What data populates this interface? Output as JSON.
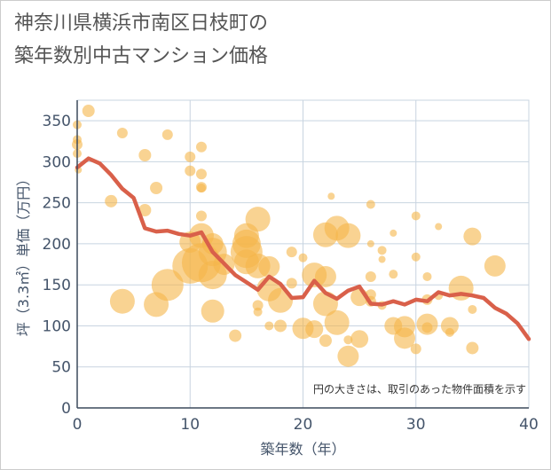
{
  "title": "神奈川県横浜市南区日枝町の\n築年数別中古マンション価格",
  "chart_data": {
    "type": "scatter",
    "xlabel": "築年数（年）",
    "ylabel": "坪（3.3㎡）単価（万円）",
    "xlim": [
      0,
      40
    ],
    "ylim": [
      0,
      375
    ],
    "xticks": [
      0,
      10,
      20,
      30,
      40
    ],
    "yticks": [
      0,
      50,
      100,
      150,
      200,
      250,
      300,
      350
    ],
    "grid": true,
    "annotation": "円の大きさは、取引のあった物件面積を示す",
    "colors": {
      "bubble": "#f5b54a",
      "line": "#d9604a",
      "grid": "#c8d4e0",
      "text": "#44546a"
    },
    "bubbles": [
      {
        "x": 0,
        "y": 345,
        "r": 5
      },
      {
        "x": 0,
        "y": 327,
        "r": 5
      },
      {
        "x": 0,
        "y": 321,
        "r": 6
      },
      {
        "x": 0,
        "y": 310,
        "r": 5
      },
      {
        "x": 0.1,
        "y": 290,
        "r": 4
      },
      {
        "x": 1,
        "y": 362,
        "r": 7
      },
      {
        "x": 3,
        "y": 252,
        "r": 7
      },
      {
        "x": 4,
        "y": 335,
        "r": 6
      },
      {
        "x": 4,
        "y": 130,
        "r": 14
      },
      {
        "x": 6,
        "y": 308,
        "r": 7
      },
      {
        "x": 6,
        "y": 241,
        "r": 7
      },
      {
        "x": 7,
        "y": 268,
        "r": 7
      },
      {
        "x": 7,
        "y": 126,
        "r": 14
      },
      {
        "x": 8,
        "y": 333,
        "r": 6
      },
      {
        "x": 8,
        "y": 150,
        "r": 18
      },
      {
        "x": 10,
        "y": 306,
        "r": 6
      },
      {
        "x": 10,
        "y": 289,
        "r": 6
      },
      {
        "x": 10,
        "y": 202,
        "r": 12
      },
      {
        "x": 10,
        "y": 173,
        "r": 20
      },
      {
        "x": 11,
        "y": 318,
        "r": 6
      },
      {
        "x": 11,
        "y": 285,
        "r": 6
      },
      {
        "x": 11,
        "y": 269,
        "r": 6
      },
      {
        "x": 11,
        "y": 268,
        "r": 5
      },
      {
        "x": 11,
        "y": 234,
        "r": 6
      },
      {
        "x": 11,
        "y": 210,
        "r": 14
      },
      {
        "x": 11,
        "y": 177,
        "r": 22
      },
      {
        "x": 12,
        "y": 200,
        "r": 12
      },
      {
        "x": 12,
        "y": 190,
        "r": 16
      },
      {
        "x": 12,
        "y": 162,
        "r": 16
      },
      {
        "x": 12,
        "y": 118,
        "r": 13
      },
      {
        "x": 13,
        "y": 175,
        "r": 12
      },
      {
        "x": 14,
        "y": 88,
        "r": 7
      },
      {
        "x": 15,
        "y": 210,
        "r": 14
      },
      {
        "x": 15,
        "y": 200,
        "r": 16
      },
      {
        "x": 15,
        "y": 190,
        "r": 18
      },
      {
        "x": 15,
        "y": 178,
        "r": 14
      },
      {
        "x": 16,
        "y": 230,
        "r": 14
      },
      {
        "x": 16,
        "y": 173,
        "r": 14
      },
      {
        "x": 16,
        "y": 125,
        "r": 6
      },
      {
        "x": 16,
        "y": 117,
        "r": 5
      },
      {
        "x": 17,
        "y": 172,
        "r": 12
      },
      {
        "x": 17,
        "y": 145,
        "r": 14
      },
      {
        "x": 17,
        "y": 100,
        "r": 5
      },
      {
        "x": 18,
        "y": 131,
        "r": 14
      },
      {
        "x": 18,
        "y": 100,
        "r": 7
      },
      {
        "x": 19,
        "y": 190,
        "r": 6
      },
      {
        "x": 19,
        "y": 152,
        "r": 6
      },
      {
        "x": 20,
        "y": 183,
        "r": 5
      },
      {
        "x": 20,
        "y": 97,
        "r": 12
      },
      {
        "x": 21,
        "y": 162,
        "r": 14
      },
      {
        "x": 21,
        "y": 96,
        "r": 10
      },
      {
        "x": 22,
        "y": 211,
        "r": 14
      },
      {
        "x": 22,
        "y": 160,
        "r": 12
      },
      {
        "x": 22,
        "y": 127,
        "r": 14
      },
      {
        "x": 22,
        "y": 82,
        "r": 7
      },
      {
        "x": 22.5,
        "y": 258,
        "r": 4
      },
      {
        "x": 23,
        "y": 219,
        "r": 14
      },
      {
        "x": 23,
        "y": 104,
        "r": 14
      },
      {
        "x": 24,
        "y": 210,
        "r": 14
      },
      {
        "x": 24,
        "y": 63,
        "r": 12
      },
      {
        "x": 24,
        "y": 83,
        "r": 5
      },
      {
        "x": 25,
        "y": 135,
        "r": 10
      },
      {
        "x": 25,
        "y": 84,
        "r": 10
      },
      {
        "x": 26,
        "y": 248,
        "r": 5
      },
      {
        "x": 26,
        "y": 200,
        "r": 4
      },
      {
        "x": 26,
        "y": 160,
        "r": 6
      },
      {
        "x": 26,
        "y": 138,
        "r": 6
      },
      {
        "x": 26,
        "y": 130,
        "r": 6
      },
      {
        "x": 27,
        "y": 192,
        "r": 5
      },
      {
        "x": 27,
        "y": 181,
        "r": 4
      },
      {
        "x": 27,
        "y": 125,
        "r": 5
      },
      {
        "x": 28,
        "y": 213,
        "r": 4
      },
      {
        "x": 28,
        "y": 163,
        "r": 5
      },
      {
        "x": 28,
        "y": 100,
        "r": 10
      },
      {
        "x": 29,
        "y": 99,
        "r": 12
      },
      {
        "x": 29,
        "y": 85,
        "r": 12
      },
      {
        "x": 30,
        "y": 234,
        "r": 5
      },
      {
        "x": 30,
        "y": 184,
        "r": 5
      },
      {
        "x": 30,
        "y": 72,
        "r": 6
      },
      {
        "x": 31,
        "y": 160,
        "r": 5
      },
      {
        "x": 31,
        "y": 132,
        "r": 6
      },
      {
        "x": 31,
        "y": 102,
        "r": 12
      },
      {
        "x": 31,
        "y": 98,
        "r": 6
      },
      {
        "x": 32,
        "y": 221,
        "r": 4
      },
      {
        "x": 32,
        "y": 137,
        "r": 5
      },
      {
        "x": 33,
        "y": 100,
        "r": 10
      },
      {
        "x": 33,
        "y": 92,
        "r": 5
      },
      {
        "x": 34,
        "y": 146,
        "r": 14
      },
      {
        "x": 35,
        "y": 209,
        "r": 10
      },
      {
        "x": 35,
        "y": 120,
        "r": 5
      },
      {
        "x": 35,
        "y": 73,
        "r": 7
      },
      {
        "x": 37,
        "y": 173,
        "r": 12
      }
    ],
    "line": {
      "x": [
        0,
        1,
        2,
        3,
        4,
        5,
        6,
        7,
        8,
        9,
        10,
        11,
        12,
        13,
        14,
        15,
        16,
        17,
        18,
        19,
        20,
        21,
        22,
        23,
        24,
        25,
        26,
        27,
        28,
        29,
        30,
        31,
        32,
        33,
        34,
        35,
        36,
        37,
        38,
        39,
        40
      ],
      "y": [
        293,
        304,
        298,
        284,
        267,
        256,
        219,
        215,
        216,
        212,
        210,
        214,
        190,
        176,
        162,
        153,
        144,
        160,
        151,
        134,
        135,
        155,
        140,
        133,
        143,
        148,
        127,
        126,
        130,
        126,
        132,
        130,
        141,
        137,
        139,
        137,
        134,
        122,
        115,
        103,
        84
      ]
    }
  }
}
